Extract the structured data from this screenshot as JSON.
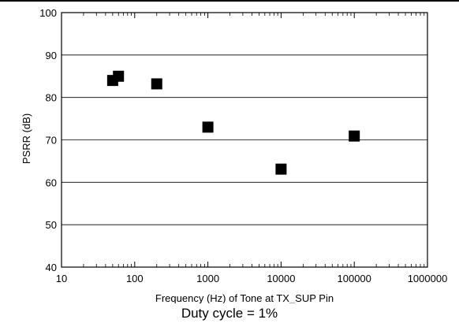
{
  "chart_data": {
    "type": "scatter",
    "title": "",
    "xlabel": "Frequency (Hz) of Tone at TX_SUP Pin",
    "ylabel": "PSRR (dB)",
    "xscale": "log",
    "xlim": [
      10,
      1000000
    ],
    "ylim": [
      40,
      100
    ],
    "x_ticks": [
      10,
      100,
      1000,
      10000,
      100000,
      1000000
    ],
    "x_tick_labels": [
      "10",
      "100",
      "1000",
      "10000",
      "100000",
      "1000000"
    ],
    "y_ticks": [
      40,
      50,
      60,
      70,
      80,
      90,
      100
    ],
    "y_tick_labels": [
      "40",
      "50",
      "60",
      "70",
      "80",
      "90",
      "100"
    ],
    "grid": "horizontal",
    "legend": "none",
    "marker": "square",
    "marker_color": "#000000",
    "series": [
      {
        "points": [
          {
            "x": 50,
            "y": 84
          },
          {
            "x": 60,
            "y": 85
          },
          {
            "x": 200,
            "y": 83.2
          },
          {
            "x": 1000,
            "y": 73
          },
          {
            "x": 10000,
            "y": 63.1
          },
          {
            "x": 100000,
            "y": 70.9
          }
        ]
      }
    ],
    "caption": "Duty cycle = 1%"
  }
}
